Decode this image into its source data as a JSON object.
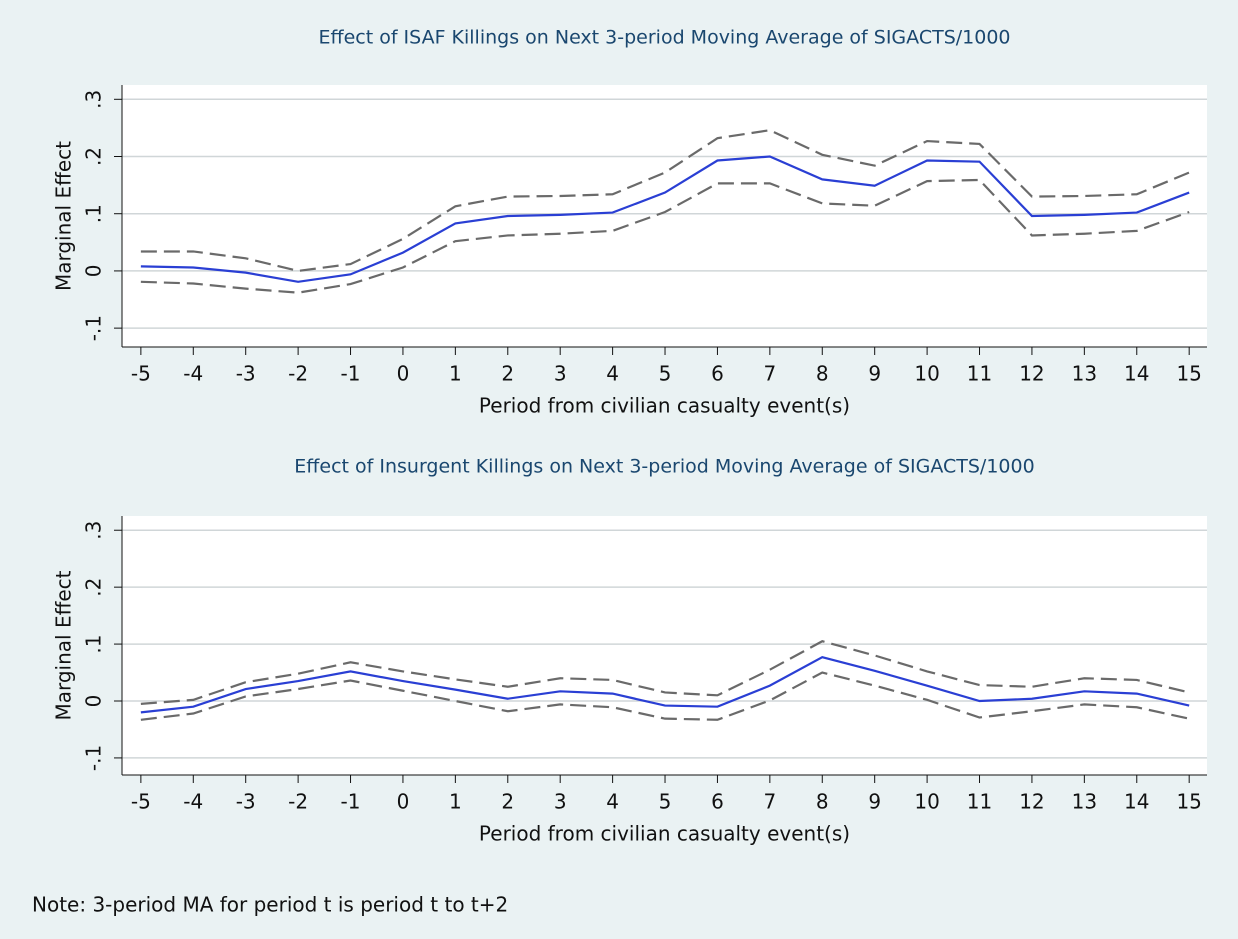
{
  "chart_data": [
    {
      "type": "line",
      "title": "Effect of ISAF Killings on Next 3-period Moving Average of SIGACTS/1000",
      "ylabel": "Marginal Effect",
      "xlabel": "Period from civilian casualty event(s)",
      "x": [
        -5,
        -4,
        -3,
        -2,
        -1,
        0,
        1,
        2,
        3,
        4,
        5,
        6,
        7,
        8,
        9,
        10,
        11,
        12,
        13,
        14,
        15
      ],
      "xlim": [
        -5.36,
        15.34
      ],
      "xticks": [
        -5,
        -4,
        -3,
        -2,
        -1,
        0,
        1,
        2,
        3,
        4,
        5,
        6,
        7,
        8,
        9,
        10,
        11,
        12,
        13,
        14,
        15
      ],
      "ylim": [
        -0.126,
        0.325
      ],
      "yticks": [
        {
          "value": -0.1,
          "label": "-.1"
        },
        0,
        {
          "value": 0.1,
          "label": ".1"
        },
        {
          "value": 0.2,
          "label": ".2"
        },
        {
          "value": 0.3,
          "label": ".3"
        }
      ],
      "grid": true,
      "series": [
        {
          "color": "#2a3fd4",
          "dashed": false,
          "values": [
            0.008,
            0.006,
            -0.003,
            -0.019,
            -0.006,
            0.032,
            0.083,
            0.096,
            0.098,
            0.102,
            0.137,
            0.193,
            0.2,
            0.16,
            0.149,
            0.193,
            0.191,
            0.096,
            0.098,
            0.102,
            0.137
          ]
        },
        {
          "color": "#6a6a6a",
          "dashed": true,
          "values": [
            0.034,
            0.034,
            0.022,
            0,
            0.012,
            0.056,
            0.113,
            0.13,
            0.131,
            0.134,
            0.172,
            0.232,
            0.246,
            0.203,
            0.184,
            0.227,
            0.222,
            0.13,
            0.131,
            0.134,
            0.172
          ]
        },
        {
          "color": "#6a6a6a",
          "dashed": true,
          "values": [
            -0.019,
            -0.022,
            -0.031,
            -0.038,
            -0.023,
            0.006,
            0.052,
            0.062,
            0.065,
            0.07,
            0.103,
            0.153,
            0.153,
            0.118,
            0.114,
            0.157,
            0.159,
            0.062,
            0.065,
            0.07,
            0.103
          ]
        }
      ]
    },
    {
      "type": "line",
      "title": "Effect of Insurgent Killings on Next 3-period Moving Average of SIGACTS/1000",
      "ylabel": "Marginal Effect",
      "xlabel": "Period from civilian casualty event(s)",
      "x": [
        -5,
        -4,
        -3,
        -2,
        -1,
        0,
        1,
        2,
        3,
        4,
        5,
        6,
        7,
        8,
        9,
        10,
        11,
        12,
        13,
        14,
        15
      ],
      "xlim": [
        -5.36,
        15.34
      ],
      "xticks": [
        -5,
        -4,
        -3,
        -2,
        -1,
        0,
        1,
        2,
        3,
        4,
        5,
        6,
        7,
        8,
        9,
        10,
        11,
        12,
        13,
        14,
        15
      ],
      "ylim": [
        -0.13,
        0.325
      ],
      "yticks": [
        {
          "value": -0.1,
          "label": "-.1"
        },
        0,
        {
          "value": 0.1,
          "label": ".1"
        },
        {
          "value": 0.2,
          "label": ".2"
        },
        {
          "value": 0.3,
          "label": ".3"
        }
      ],
      "grid": true,
      "series": [
        {
          "color": "#2a3fd4",
          "dashed": false,
          "values": [
            -0.02,
            -0.01,
            0.021,
            0.035,
            0.052,
            0.035,
            0.02,
            0.004,
            0.017,
            0.013,
            -0.008,
            -0.01,
            0.027,
            0.077,
            0.053,
            0.027,
            0,
            0.004,
            0.017,
            0.013,
            -0.008
          ]
        },
        {
          "color": "#6a6a6a",
          "dashed": true,
          "values": [
            -0.005,
            0.002,
            0.033,
            0.048,
            0.068,
            0.052,
            0.038,
            0.025,
            0.04,
            0.037,
            0.015,
            0.01,
            0.055,
            0.105,
            0.08,
            0.052,
            0.028,
            0.025,
            0.04,
            0.037,
            0.015
          ]
        },
        {
          "color": "#6a6a6a",
          "dashed": true,
          "values": [
            -0.033,
            -0.022,
            0.008,
            0.021,
            0.036,
            0.018,
            0,
            -0.018,
            -0.006,
            -0.011,
            -0.031,
            -0.033,
            0.001,
            0.05,
            0.027,
            0.002,
            -0.029,
            -0.018,
            -0.006,
            -0.011,
            -0.031
          ]
        }
      ]
    }
  ],
  "note": "Note: 3-period MA for period t is period t to t+2"
}
